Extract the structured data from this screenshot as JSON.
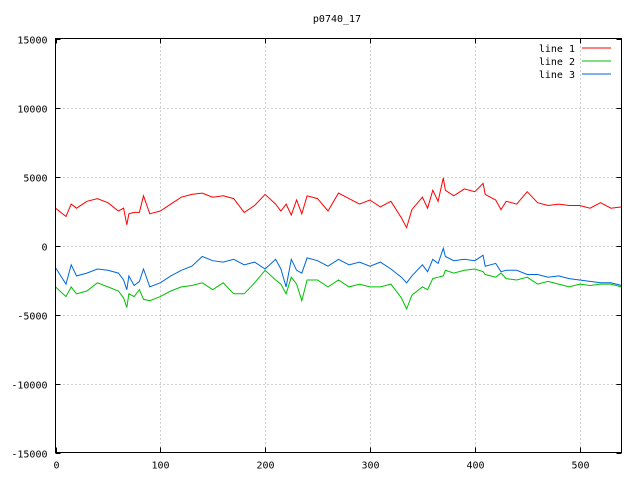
{
  "chart_data": {
    "type": "line",
    "title": "p0740_17",
    "xlabel": "",
    "ylabel": "",
    "xlim": [
      0,
      540
    ],
    "ylim": [
      -15000,
      15000
    ],
    "xticks": [
      0,
      100,
      200,
      300,
      400,
      500
    ],
    "yticks": [
      -15000,
      -10000,
      -5000,
      0,
      5000,
      10000,
      15000
    ],
    "grid": true,
    "legend": "top-right",
    "x": [
      0,
      10,
      15,
      20,
      30,
      40,
      50,
      60,
      65,
      68,
      70,
      75,
      80,
      84,
      90,
      100,
      110,
      120,
      130,
      140,
      150,
      160,
      170,
      180,
      190,
      200,
      210,
      215,
      220,
      225,
      230,
      235,
      240,
      250,
      260,
      270,
      280,
      290,
      300,
      310,
      320,
      330,
      335,
      340,
      350,
      355,
      360,
      365,
      370,
      372,
      380,
      390,
      400,
      408,
      410,
      420,
      425,
      430,
      440,
      450,
      460,
      470,
      480,
      490,
      500,
      510,
      520,
      530,
      540
    ],
    "series": [
      {
        "name": "line 1",
        "color": "#ff0000",
        "values": [
          2700,
          2100,
          3000,
          2700,
          3200,
          3400,
          3100,
          2500,
          2700,
          1500,
          2300,
          2400,
          2400,
          3600,
          2300,
          2500,
          3000,
          3500,
          3700,
          3800,
          3500,
          3600,
          3400,
          2400,
          2900,
          3700,
          3000,
          2500,
          3000,
          2200,
          3300,
          2300,
          3600,
          3400,
          2500,
          3800,
          3400,
          3000,
          3300,
          2800,
          3200,
          2000,
          1300,
          2600,
          3500,
          2700,
          4000,
          3200,
          4900,
          4000,
          3600,
          4100,
          3900,
          4500,
          3700,
          3300,
          2600,
          3200,
          3000,
          3900,
          3100,
          2900,
          3000,
          2900,
          2900,
          2700,
          3100,
          2700,
          2800
        ]
      },
      {
        "name": "line 2",
        "color": "#00c000",
        "values": [
          -3000,
          -3700,
          -3000,
          -3500,
          -3300,
          -2700,
          -3000,
          -3300,
          -3800,
          -4500,
          -3500,
          -3700,
          -3200,
          -3900,
          -4000,
          -3700,
          -3300,
          -3000,
          -2900,
          -2700,
          -3200,
          -2700,
          -3500,
          -3500,
          -2700,
          -1800,
          -2500,
          -2800,
          -3500,
          -2300,
          -2800,
          -4000,
          -2500,
          -2500,
          -3000,
          -2500,
          -3000,
          -2800,
          -3000,
          -3000,
          -2800,
          -3800,
          -4600,
          -3600,
          -3000,
          -3200,
          -2400,
          -2300,
          -2200,
          -1800,
          -2000,
          -1800,
          -1700,
          -1900,
          -2100,
          -2300,
          -2000,
          -2400,
          -2500,
          -2300,
          -2800,
          -2600,
          -2800,
          -3000,
          -2800,
          -2900,
          -2800,
          -2800,
          -3000
        ]
      },
      {
        "name": "line 3",
        "color": "#0066dd",
        "values": [
          -1600,
          -2800,
          -1400,
          -2200,
          -2000,
          -1700,
          -1800,
          -2000,
          -2500,
          -3200,
          -2200,
          -2900,
          -2600,
          -1700,
          -3000,
          -2700,
          -2200,
          -1800,
          -1500,
          -800,
          -1100,
          -1200,
          -1000,
          -1400,
          -1200,
          -1700,
          -1000,
          -1700,
          -3000,
          -1000,
          -1800,
          -2000,
          -900,
          -1100,
          -1500,
          -1000,
          -1400,
          -1200,
          -1500,
          -1200,
          -1700,
          -2300,
          -2700,
          -2200,
          -1400,
          -1900,
          -1000,
          -1300,
          -200,
          -800,
          -1100,
          -1000,
          -1100,
          -700,
          -1500,
          -1300,
          -1900,
          -1800,
          -1800,
          -2100,
          -2100,
          -2300,
          -2200,
          -2400,
          -2500,
          -2600,
          -2700,
          -2700,
          -2900
        ]
      }
    ]
  }
}
